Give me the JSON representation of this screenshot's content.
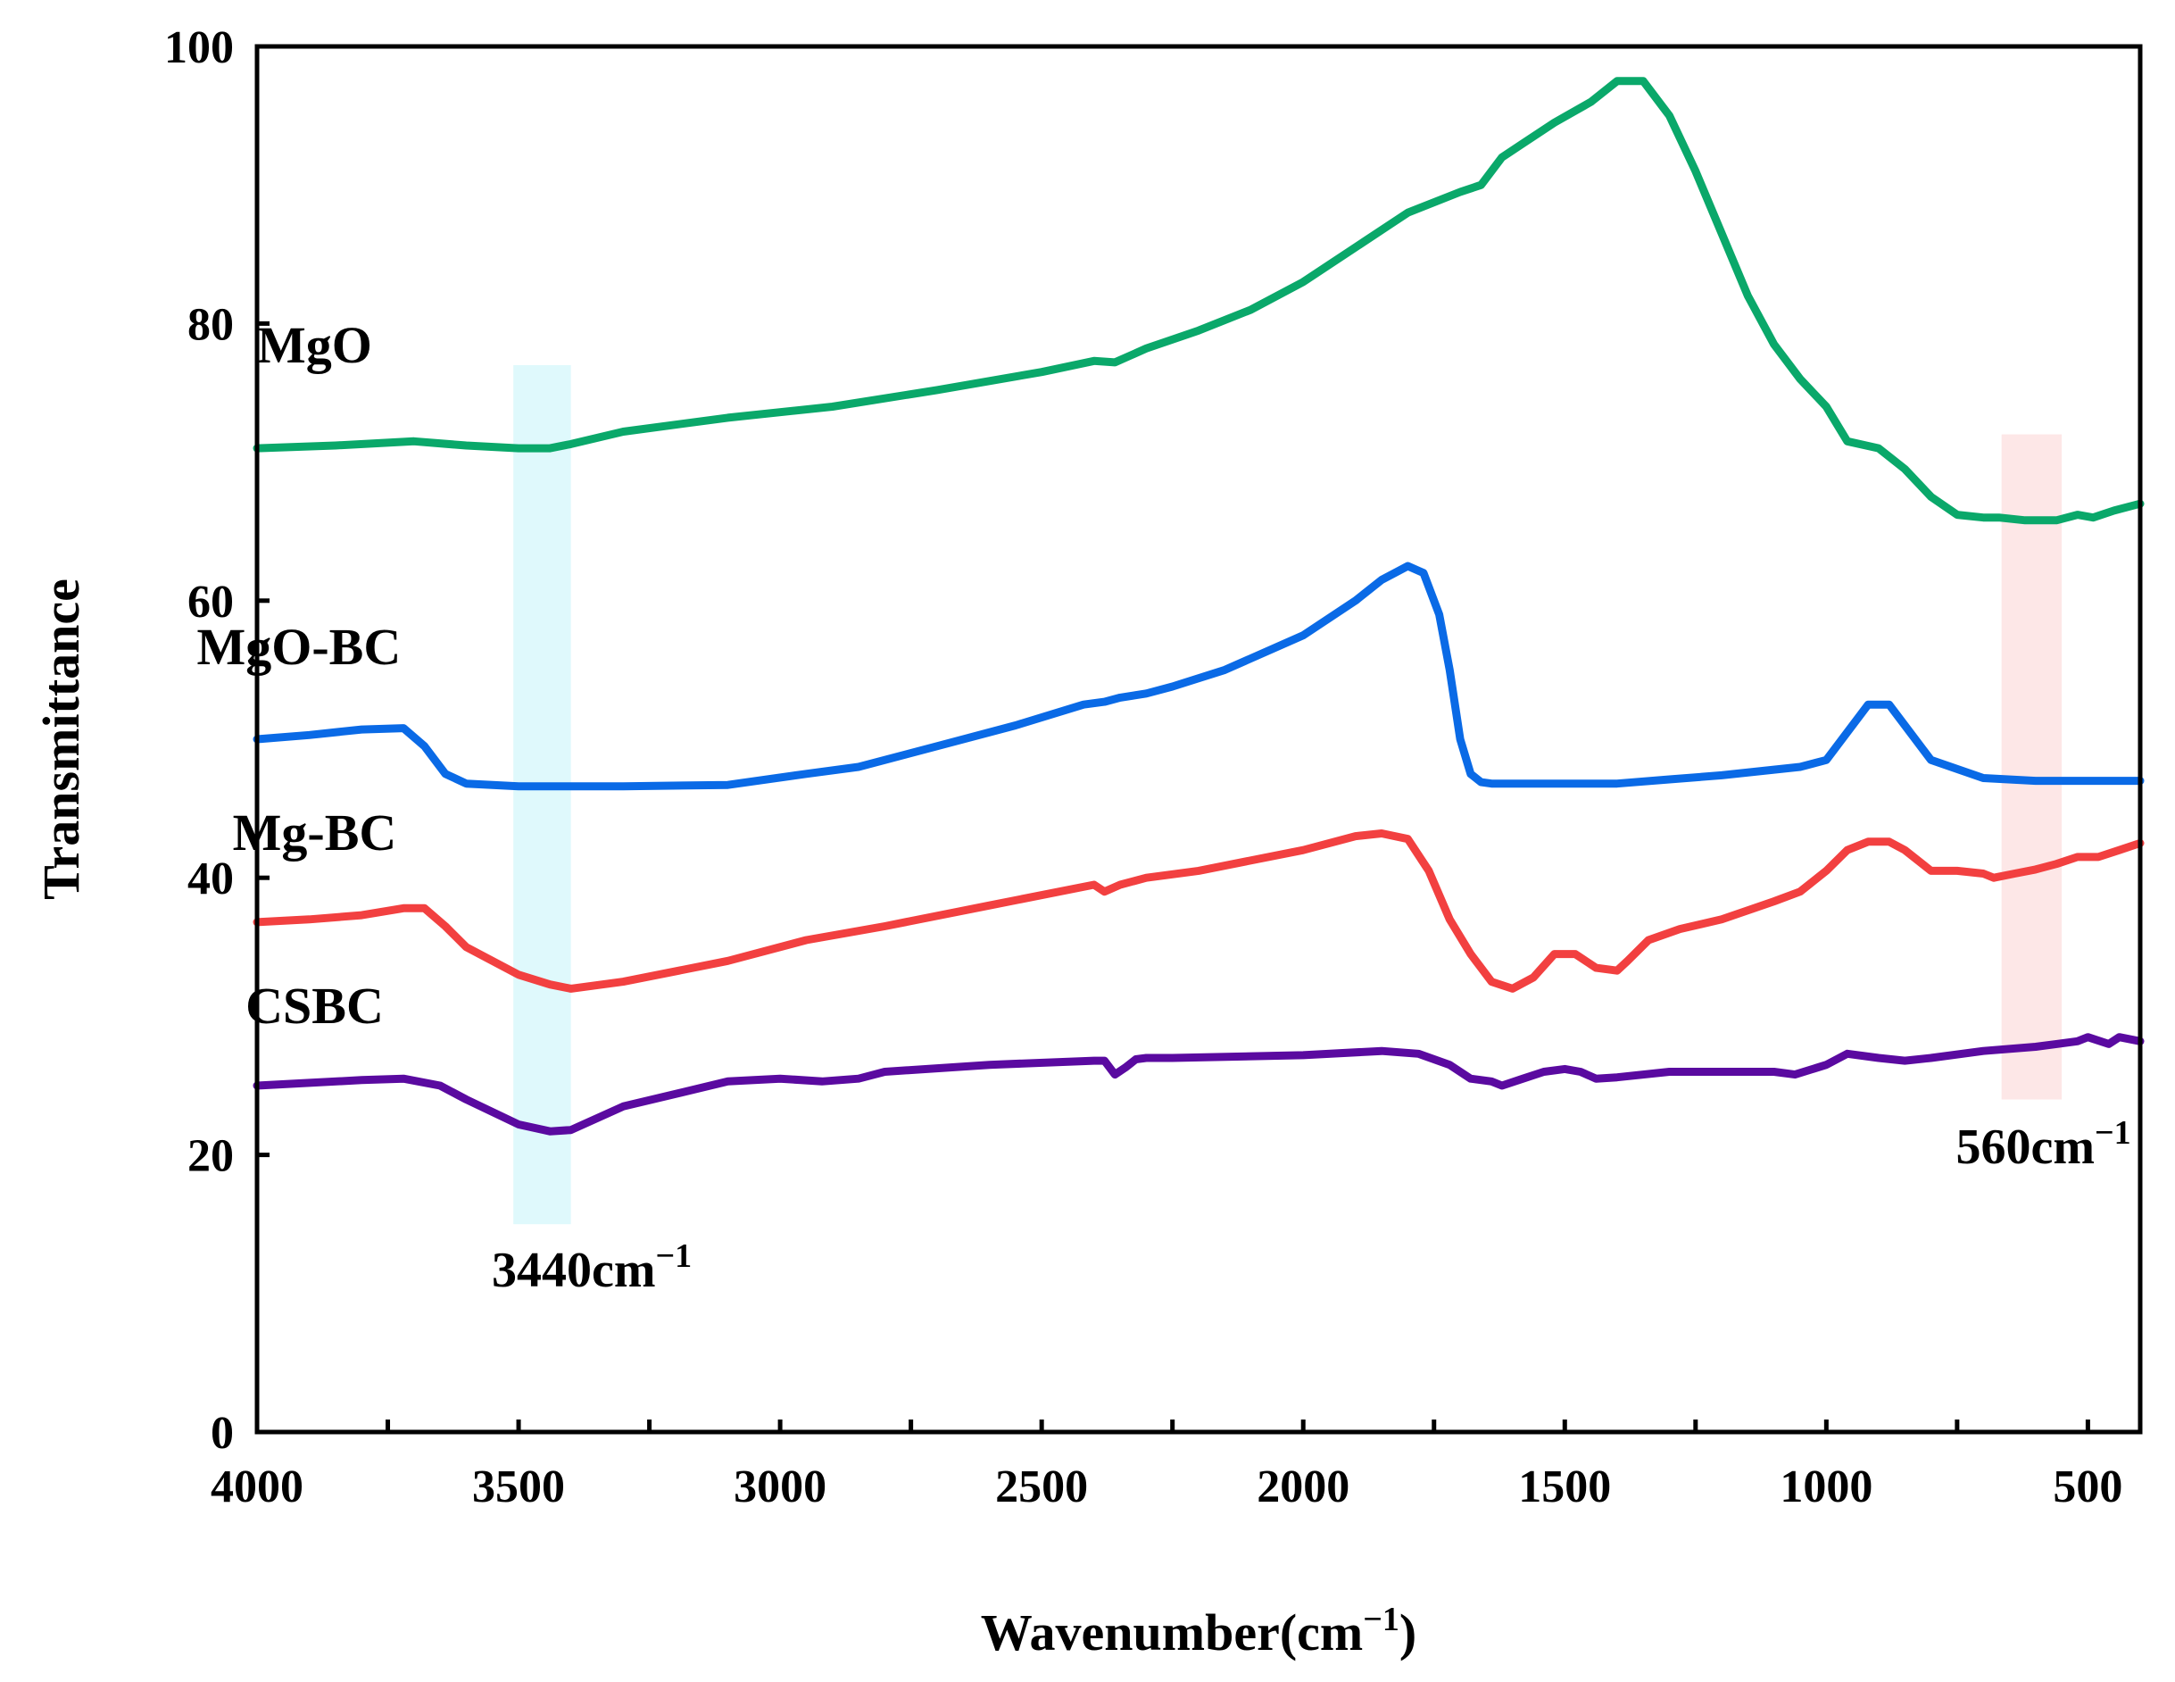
{
  "chart_data": {
    "type": "line",
    "xlabel": "Wavenumber(cm",
    "xlabel_sup": "−1",
    "xlabel_close": ")",
    "ylabel": "Transmittance",
    "xlim": [
      4000,
      400
    ],
    "ylim": [
      0,
      100
    ],
    "x_reversed": true,
    "x_ticks": [
      4000,
      3500,
      3000,
      2500,
      2000,
      1500,
      1000,
      500
    ],
    "y_ticks": [
      0,
      20,
      40,
      60,
      80,
      100
    ],
    "grid": false,
    "legend": "none",
    "series": [
      {
        "name": "MgO",
        "color": "#0aa86a",
        "x": [
          4000,
          3850,
          3700,
          3600,
          3500,
          3440,
          3400,
          3300,
          3100,
          2900,
          2700,
          2500,
          2400,
          2360,
          2300,
          2200,
          2100,
          2000,
          1900,
          1800,
          1700,
          1660,
          1620,
          1580,
          1520,
          1450,
          1400,
          1350,
          1300,
          1250,
          1200,
          1150,
          1100,
          1050,
          1000,
          960,
          900,
          850,
          800,
          750,
          700,
          670,
          620,
          560,
          520,
          490,
          450,
          400
        ],
        "values": [
          71.0,
          71.2,
          71.5,
          71.2,
          71.0,
          71.0,
          71.3,
          72.2,
          73.2,
          74.0,
          75.2,
          76.5,
          77.3,
          77.2,
          78.2,
          79.5,
          81.0,
          83.0,
          85.5,
          88.0,
          89.5,
          90.0,
          92.0,
          93.0,
          94.5,
          96.0,
          97.5,
          97.5,
          95.0,
          91.0,
          86.5,
          82.0,
          78.5,
          76.0,
          74.0,
          71.5,
          71.0,
          69.5,
          67.5,
          66.2,
          66.0,
          66.0,
          65.8,
          65.8,
          66.2,
          66.0,
          66.5,
          67.0
        ]
      },
      {
        "name": "MgO-BC",
        "color": "#0a6ae6",
        "x": [
          4000,
          3900,
          3800,
          3720,
          3680,
          3640,
          3600,
          3500,
          3440,
          3300,
          3100,
          2950,
          2850,
          2700,
          2550,
          2420,
          2380,
          2350,
          2300,
          2250,
          2150,
          2000,
          1900,
          1850,
          1800,
          1770,
          1740,
          1720,
          1700,
          1680,
          1660,
          1640,
          1600,
          1500,
          1400,
          1300,
          1200,
          1100,
          1050,
          1000,
          960,
          920,
          880,
          840,
          800,
          700,
          600,
          500,
          400
        ],
        "values": [
          50.0,
          50.3,
          50.7,
          50.8,
          49.5,
          47.5,
          46.8,
          46.6,
          46.6,
          46.6,
          46.7,
          47.5,
          48.0,
          49.5,
          51.0,
          52.5,
          52.7,
          53.0,
          53.3,
          53.8,
          55.0,
          57.5,
          60.0,
          61.5,
          62.5,
          62.0,
          59.0,
          55.0,
          50.0,
          47.5,
          46.9,
          46.8,
          46.8,
          46.8,
          46.8,
          47.1,
          47.4,
          47.8,
          48.0,
          48.5,
          50.5,
          52.5,
          52.5,
          50.5,
          48.5,
          47.2,
          47.0,
          47.0,
          47.0
        ]
      },
      {
        "name": "Mg-BC",
        "color": "#f24040",
        "x": [
          4000,
          3900,
          3800,
          3720,
          3680,
          3640,
          3600,
          3500,
          3440,
          3400,
          3300,
          3100,
          2950,
          2800,
          2600,
          2400,
          2380,
          2350,
          2300,
          2200,
          2000,
          1900,
          1850,
          1800,
          1760,
          1720,
          1680,
          1640,
          1600,
          1560,
          1520,
          1480,
          1440,
          1400,
          1380,
          1340,
          1280,
          1200,
          1100,
          1050,
          1000,
          960,
          920,
          880,
          850,
          800,
          750,
          700,
          680,
          640,
          600,
          560,
          520,
          480,
          440,
          400
        ],
        "values": [
          36.8,
          37.0,
          37.3,
          37.8,
          37.8,
          36.5,
          35.0,
          33.0,
          32.3,
          32.0,
          32.5,
          34.0,
          35.5,
          36.5,
          38.0,
          39.5,
          39.0,
          39.5,
          40.0,
          40.5,
          42.0,
          43.0,
          43.2,
          42.8,
          40.5,
          37.0,
          34.5,
          32.5,
          32.0,
          32.8,
          34.5,
          34.5,
          33.5,
          33.3,
          34.0,
          35.5,
          36.3,
          37.0,
          38.3,
          39.0,
          40.5,
          42.0,
          42.6,
          42.6,
          42.0,
          40.5,
          40.5,
          40.3,
          40.0,
          40.3,
          40.6,
          41.0,
          41.5,
          41.5,
          42.0,
          42.5
        ]
      },
      {
        "name": "CSBC",
        "color": "#5a0aa0",
        "x": [
          4000,
          3900,
          3800,
          3720,
          3650,
          3600,
          3500,
          3440,
          3400,
          3300,
          3100,
          3000,
          2920,
          2850,
          2800,
          2600,
          2400,
          2380,
          2360,
          2340,
          2320,
          2300,
          2250,
          2000,
          1850,
          1780,
          1720,
          1680,
          1640,
          1620,
          1580,
          1540,
          1500,
          1470,
          1440,
          1400,
          1300,
          1200,
          1100,
          1060,
          1000,
          960,
          900,
          850,
          800,
          700,
          600,
          560,
          520,
          500,
          460,
          440,
          400
        ],
        "values": [
          25.0,
          25.2,
          25.4,
          25.5,
          25.0,
          24.0,
          22.2,
          21.7,
          21.8,
          23.5,
          25.3,
          25.5,
          25.3,
          25.5,
          26.0,
          26.5,
          26.8,
          26.8,
          25.8,
          26.3,
          26.9,
          27.0,
          27.0,
          27.2,
          27.5,
          27.3,
          26.5,
          25.5,
          25.3,
          25.0,
          25.5,
          26.0,
          26.2,
          26.0,
          25.5,
          25.6,
          26.0,
          26.0,
          26.0,
          25.8,
          26.5,
          27.3,
          27.0,
          26.8,
          27.0,
          27.5,
          27.8,
          28.0,
          28.2,
          28.5,
          28.0,
          28.5,
          28.2
        ]
      }
    ],
    "annotations": [
      {
        "text": "3440cm",
        "sup": "−1",
        "x_range": [
          3510,
          3400
        ],
        "y_range": [
          15,
          77
        ],
        "color": "#dff9fc"
      },
      {
        "text": "560cm",
        "sup": "−1",
        "x_range": [
          665,
          550
        ],
        "y_range": [
          24,
          72
        ],
        "color": "#fde7e7"
      }
    ]
  }
}
